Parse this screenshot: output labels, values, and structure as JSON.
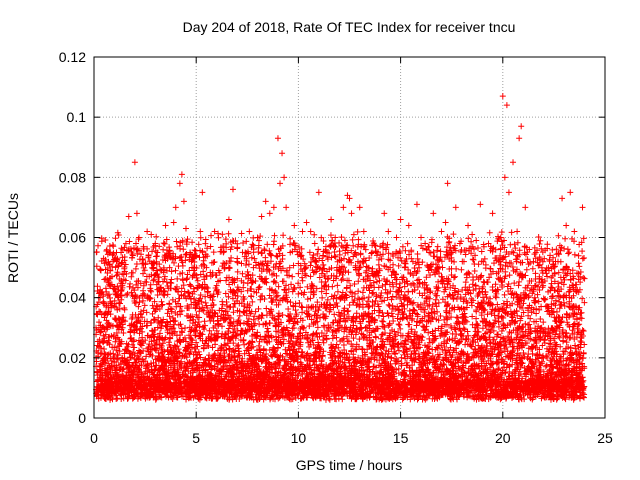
{
  "chart_data": {
    "type": "scatter",
    "title": "Day 204 of 2018, Rate Of TEC Index for receiver tncu",
    "xlabel": "GPS time / hours",
    "ylabel": "ROTI / TECUs",
    "xlim": [
      0,
      25
    ],
    "ylim": [
      0,
      0.12
    ],
    "x_ticks": [
      0,
      5,
      10,
      15,
      20,
      25
    ],
    "x_tick_labels": [
      "0",
      "5",
      "10",
      "15",
      "20",
      "25"
    ],
    "y_ticks": [
      0,
      0.02,
      0.04,
      0.06,
      0.08,
      0.1,
      0.12
    ],
    "y_tick_labels": [
      "0",
      "0.02",
      "0.04",
      "0.06",
      "0.08",
      "0.1",
      "0.12"
    ],
    "grid": true,
    "marker": "plus",
    "color": "#ff0000",
    "series": [
      {
        "x": [
          0.1,
          0.3,
          0.5,
          0.7,
          0.8,
          1.0,
          1.2,
          1.4,
          1.5,
          1.7,
          1.9,
          2.0,
          2.1,
          2.2,
          2.4,
          2.6,
          2.8,
          3.0,
          3.1,
          3.3,
          3.5,
          3.7,
          3.9,
          4.0,
          4.2,
          4.3,
          4.4,
          4.5,
          4.7,
          4.9,
          5.0,
          5.2,
          5.3,
          5.5,
          5.7,
          5.9,
          6.0,
          6.2,
          6.4,
          6.6,
          6.8,
          6.9,
          7.0,
          7.2,
          7.4,
          7.6,
          7.8,
          8.0,
          8.2,
          8.4,
          8.6,
          8.8,
          9.0,
          9.1,
          9.2,
          9.3,
          9.4,
          9.6,
          9.8,
          10.0,
          10.2,
          10.4,
          10.6,
          10.8,
          11.0,
          11.2,
          11.4,
          11.6,
          11.8,
          12.0,
          12.2,
          12.4,
          12.5,
          12.6,
          12.8,
          13.0,
          13.2,
          13.4,
          13.6,
          13.8,
          14.0,
          14.2,
          14.4,
          14.6,
          14.8,
          15.0,
          15.2,
          15.4,
          15.6,
          15.8,
          16.0,
          16.2,
          16.4,
          16.6,
          16.8,
          17.0,
          17.2,
          17.3,
          17.5,
          17.7,
          17.9,
          18.1,
          18.3,
          18.5,
          18.7,
          18.9,
          19.1,
          19.3,
          19.5,
          19.7,
          19.9,
          20.0,
          20.1,
          20.2,
          20.3,
          20.5,
          20.7,
          20.8,
          20.9,
          21.1,
          21.3,
          21.5,
          21.7,
          21.9,
          22.1,
          22.3,
          22.5,
          22.7,
          22.9,
          23.1,
          23.3,
          23.5,
          23.7,
          23.9,
          0.4,
          1.1,
          1.8,
          2.5,
          3.2,
          3.8,
          4.6,
          5.4,
          6.1,
          6.7,
          7.3,
          8.1,
          8.7,
          9.5,
          10.3,
          11.1,
          11.7,
          12.3,
          13.1,
          13.7,
          14.3,
          15.1,
          15.7,
          16.3,
          17.1,
          17.8,
          18.6,
          19.2,
          19.8,
          20.6,
          21.2,
          21.8,
          22.4,
          23.0,
          23.6
        ],
        "y": [
          0.03,
          0.04,
          0.038,
          0.045,
          0.044,
          0.043,
          0.04,
          0.03,
          0.036,
          0.067,
          0.054,
          0.085,
          0.068,
          0.06,
          0.048,
          0.062,
          0.061,
          0.058,
          0.055,
          0.049,
          0.064,
          0.05,
          0.065,
          0.07,
          0.078,
          0.081,
          0.072,
          0.063,
          0.055,
          0.042,
          0.054,
          0.062,
          0.075,
          0.05,
          0.04,
          0.062,
          0.044,
          0.033,
          0.05,
          0.066,
          0.076,
          0.038,
          0.052,
          0.042,
          0.055,
          0.062,
          0.05,
          0.06,
          0.067,
          0.072,
          0.068,
          0.07,
          0.093,
          0.078,
          0.088,
          0.08,
          0.07,
          0.055,
          0.064,
          0.048,
          0.062,
          0.065,
          0.062,
          0.058,
          0.075,
          0.054,
          0.055,
          0.066,
          0.06,
          0.05,
          0.07,
          0.074,
          0.073,
          0.068,
          0.055,
          0.07,
          0.062,
          0.05,
          0.055,
          0.048,
          0.04,
          0.068,
          0.062,
          0.045,
          0.06,
          0.066,
          0.05,
          0.064,
          0.052,
          0.071,
          0.06,
          0.058,
          0.055,
          0.068,
          0.05,
          0.062,
          0.065,
          0.078,
          0.055,
          0.07,
          0.058,
          0.052,
          0.064,
          0.061,
          0.059,
          0.071,
          0.045,
          0.058,
          0.068,
          0.048,
          0.06,
          0.107,
          0.08,
          0.104,
          0.075,
          0.085,
          0.062,
          0.093,
          0.097,
          0.07,
          0.056,
          0.052,
          0.041,
          0.03,
          0.028,
          0.028,
          0.038,
          0.052,
          0.073,
          0.064,
          0.075,
          0.062,
          0.048,
          0.07,
          0.015,
          0.012,
          0.02,
          0.011,
          0.016,
          0.014,
          0.012,
          0.018,
          0.013,
          0.011,
          0.017,
          0.014,
          0.015,
          0.012,
          0.016,
          0.013,
          0.018,
          0.014,
          0.012,
          0.017,
          0.011,
          0.015,
          0.013,
          0.016,
          0.014,
          0.012,
          0.018,
          0.015,
          0.013,
          0.016,
          0.012,
          0.014,
          0.017,
          0.013,
          0.015
        ]
      }
    ]
  }
}
